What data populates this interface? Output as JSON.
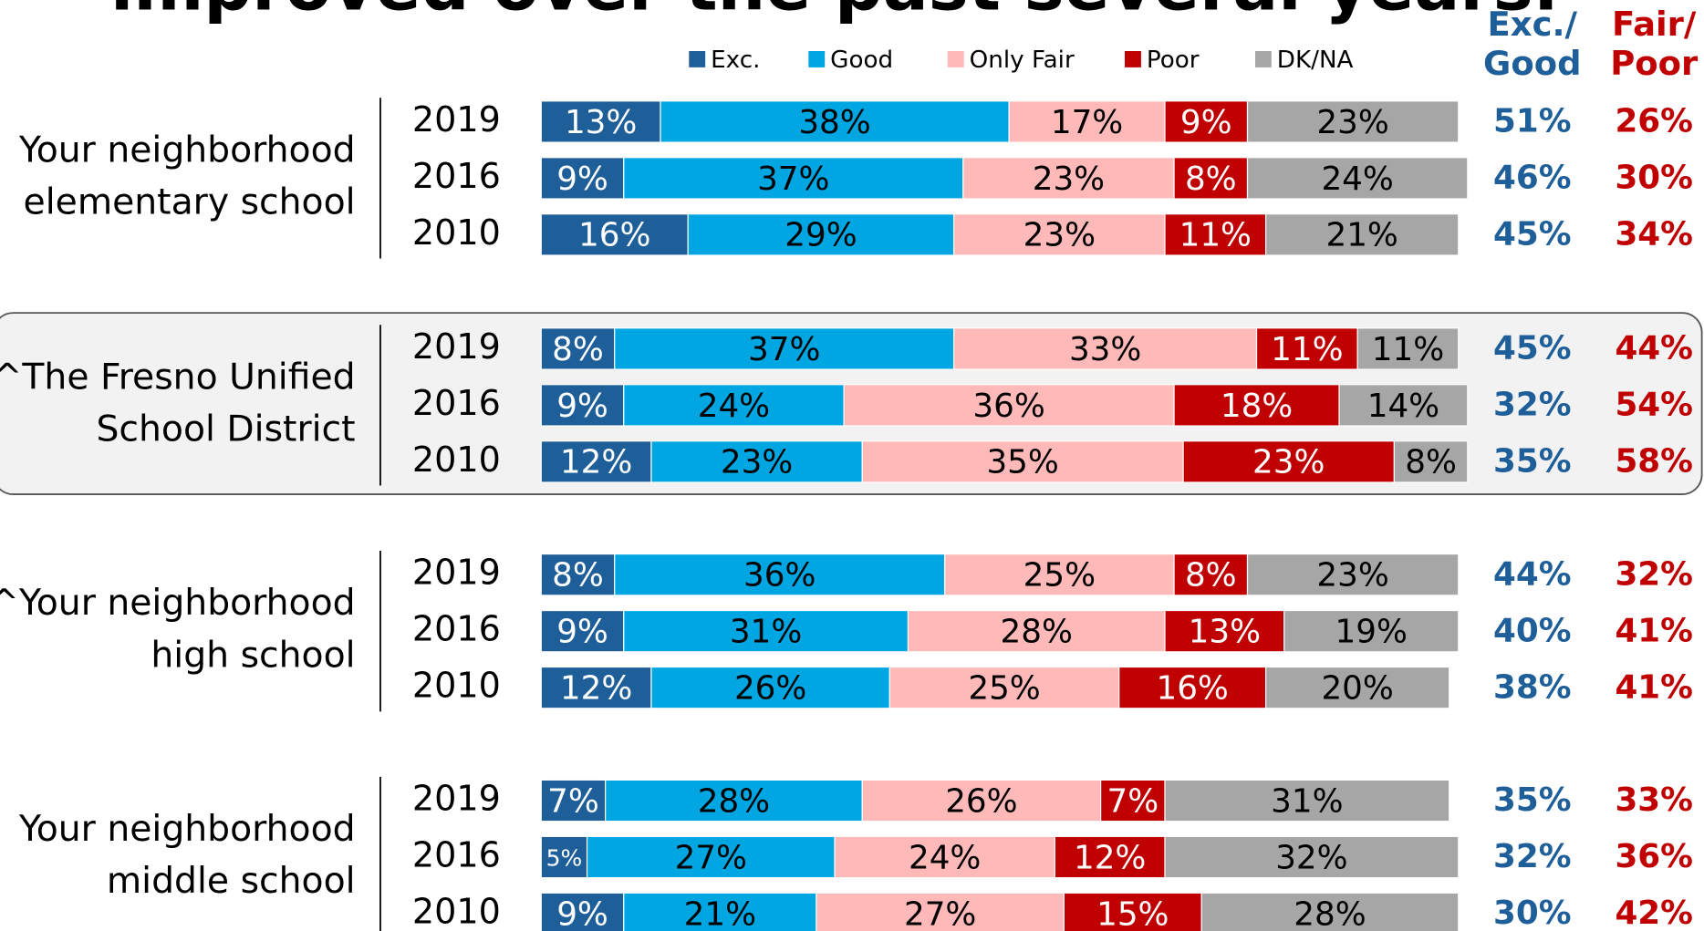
{
  "chart_data": {
    "type": "bar",
    "title": "improved over the past several years.",
    "series": [
      {
        "name": "Exc.",
        "color": "#1f5f99"
      },
      {
        "name": "Good",
        "color": "#00a6e2"
      },
      {
        "name": "Only Fair",
        "color": "#ffb9b9"
      },
      {
        "name": "Poor",
        "color": "#c00000"
      },
      {
        "name": "DK/NA",
        "color": "#a6a6a6"
      }
    ],
    "totals_series": [
      {
        "name": [
          "Exc./",
          "Good"
        ],
        "color": "#1f5f99"
      },
      {
        "name": [
          "Fair/",
          "Poor"
        ],
        "color": "#c00000"
      }
    ],
    "xlim": [
      0,
      100
    ],
    "groups": [
      {
        "label": [
          "Your neighborhood",
          "elementary school"
        ],
        "categories": [
          "2019",
          "2016",
          "2010"
        ],
        "values": [
          [
            13,
            38,
            17,
            9,
            23
          ],
          [
            9,
            37,
            23,
            8,
            24
          ],
          [
            16,
            29,
            23,
            11,
            21
          ]
        ],
        "value_labels": [
          [
            "13%",
            "38%",
            "17%",
            "9%",
            "23%"
          ],
          [
            "9%",
            "37%",
            "23%",
            "8%",
            "24%"
          ],
          [
            "16%",
            "29%",
            "23%",
            "11%",
            "21%"
          ]
        ],
        "totals": [
          [
            51,
            26
          ],
          [
            46,
            30
          ],
          [
            45,
            34
          ]
        ],
        "total_labels": [
          [
            "51%",
            "26%"
          ],
          [
            "46%",
            "30%"
          ],
          [
            "45%",
            "34%"
          ]
        ]
      },
      {
        "label": [
          "^The Fresno Unified",
          "School District"
        ],
        "categories": [
          "2019",
          "2016",
          "2010"
        ],
        "highlight": true,
        "values": [
          [
            8,
            37,
            33,
            11,
            11
          ],
          [
            9,
            24,
            36,
            18,
            14
          ],
          [
            12,
            23,
            35,
            23,
            8
          ]
        ],
        "value_labels": [
          [
            "8%",
            "37%",
            "33%",
            "11%",
            "11%"
          ],
          [
            "9%",
            "24%",
            "36%",
            "18%",
            "14%"
          ],
          [
            "12%",
            "23%",
            "35%",
            "23%",
            "8%"
          ]
        ],
        "totals": [
          [
            45,
            44
          ],
          [
            32,
            54
          ],
          [
            35,
            58
          ]
        ],
        "total_labels": [
          [
            "45%",
            "44%"
          ],
          [
            "32%",
            "54%"
          ],
          [
            "35%",
            "58%"
          ]
        ]
      },
      {
        "label": [
          "^Your neighborhood",
          "high school"
        ],
        "categories": [
          "2019",
          "2016",
          "2010"
        ],
        "values": [
          [
            8,
            36,
            25,
            8,
            23
          ],
          [
            9,
            31,
            28,
            13,
            19
          ],
          [
            12,
            26,
            25,
            16,
            20
          ]
        ],
        "value_labels": [
          [
            "8%",
            "36%",
            "25%",
            "8%",
            "23%"
          ],
          [
            "9%",
            "31%",
            "28%",
            "13%",
            "19%"
          ],
          [
            "12%",
            "26%",
            "25%",
            "16%",
            "20%"
          ]
        ],
        "totals": [
          [
            44,
            32
          ],
          [
            40,
            41
          ],
          [
            38,
            41
          ]
        ],
        "total_labels": [
          [
            "44%",
            "32%"
          ],
          [
            "40%",
            "41%"
          ],
          [
            "38%",
            "41%"
          ]
        ]
      },
      {
        "label": [
          "Your neighborhood",
          "middle school"
        ],
        "categories": [
          "2019",
          "2016",
          "2010"
        ],
        "values": [
          [
            7,
            28,
            26,
            7,
            31
          ],
          [
            5,
            27,
            24,
            12,
            32
          ],
          [
            9,
            21,
            27,
            15,
            28
          ]
        ],
        "value_labels": [
          [
            "7%",
            "28%",
            "26%",
            "7%",
            "31%"
          ],
          [
            "5%",
            "27%",
            "24%",
            "12%",
            "32%"
          ],
          [
            "9%",
            "21%",
            "27%",
            "15%",
            "28%"
          ]
        ],
        "totals": [
          [
            35,
            33
          ],
          [
            32,
            36
          ],
          [
            30,
            42
          ]
        ],
        "total_labels": [
          [
            "35%",
            "33%"
          ],
          [
            "32%",
            "36%"
          ],
          [
            "30%",
            "42%"
          ]
        ]
      }
    ]
  }
}
